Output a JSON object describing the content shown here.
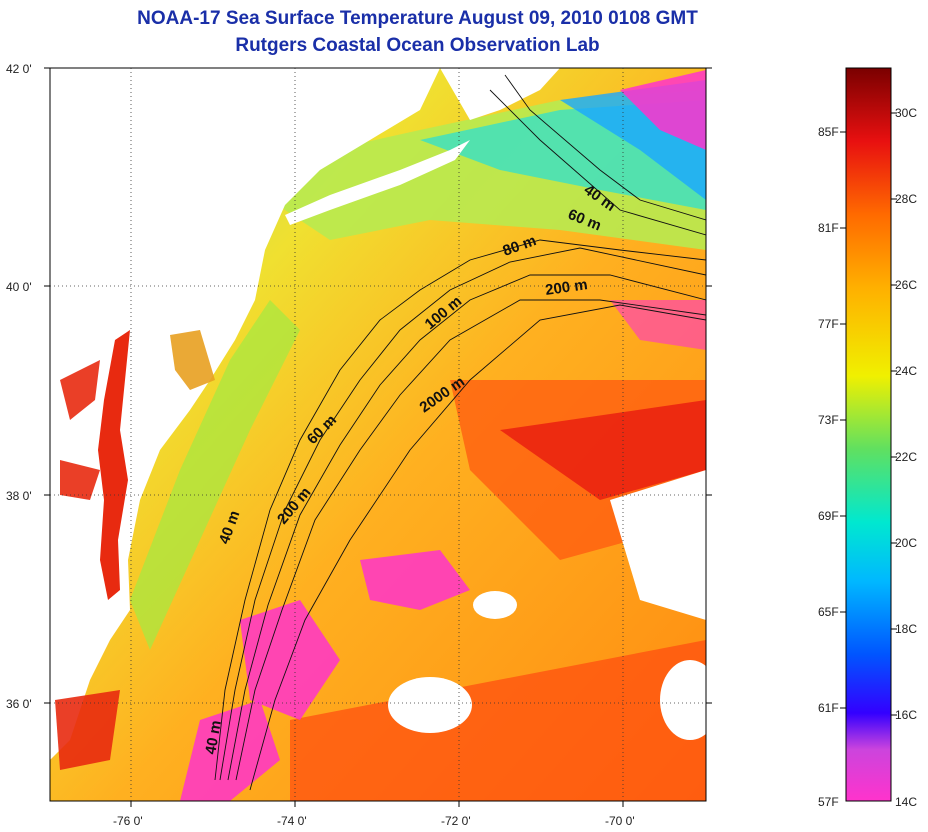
{
  "title": "NOAA-17 Sea Surface Temperature August 09, 2010 0108 GMT",
  "subtitle": "Rutgers Coastal Ocean Observation Lab",
  "map": {
    "lat_ticks": [
      "42 0'",
      "40 0'",
      "38 0'",
      "36 0'"
    ],
    "lon_ticks": [
      "-76 0'",
      "-74 0'",
      "-72 0'",
      "-70 0'"
    ],
    "contour_labels": [
      "40 m",
      "60 m",
      "80 m",
      "200 m",
      "100 m",
      "2000 m",
      "60 m",
      "200 m",
      "40 m",
      "40 m"
    ]
  },
  "colorbar": {
    "fahrenheit": [
      "85F",
      "81F",
      "77F",
      "73F",
      "69F",
      "65F",
      "61F",
      "57F"
    ],
    "celsius": [
      "30C",
      "28C",
      "26C",
      "24C",
      "22C",
      "20C",
      "18C",
      "16C",
      "14C"
    ]
  },
  "colors": {
    "title": "#1a2fa8",
    "land": "#ffffff",
    "warm": "#ff8c00",
    "hot": "#e8200f",
    "cool": "#00c8e0",
    "cold_anomaly": "#ff33cc"
  }
}
